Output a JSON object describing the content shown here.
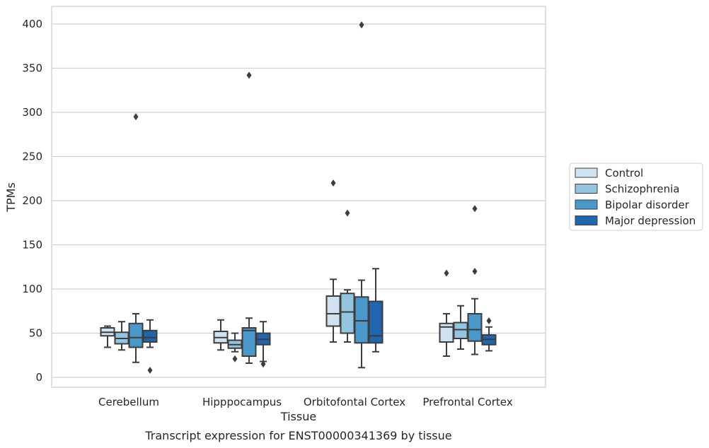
{
  "chart_data": {
    "type": "box",
    "caption": "Transcript expression for ENST00000341369 by tissue",
    "xlabel": "Tissue",
    "ylabel": "TPMs",
    "ylim": [
      -10,
      420
    ],
    "yticks": [
      0,
      50,
      100,
      150,
      200,
      250,
      300,
      350,
      400
    ],
    "grid": "horizontal",
    "legend_position": "right",
    "categories": [
      "Cerebellum",
      "Hipppocampus",
      "Orbitofontal Cortex",
      "Prefrontal Cortex"
    ],
    "series": [
      {
        "name": "Control",
        "color": "#d0e1f2",
        "boxes": [
          {
            "whislo": 34,
            "q1": 47,
            "med": 51,
            "q3": 56,
            "whishi": 58,
            "fliers": []
          },
          {
            "whislo": 31,
            "q1": 39,
            "med": 45,
            "q3": 52,
            "whishi": 65,
            "fliers": []
          },
          {
            "whislo": 40,
            "q1": 58,
            "med": 72,
            "q3": 92,
            "whishi": 111,
            "fliers": [
              220
            ]
          },
          {
            "whislo": 24,
            "q1": 40,
            "med": 57,
            "q3": 61,
            "whishi": 72,
            "fliers": [
              118
            ]
          }
        ]
      },
      {
        "name": "Schizophrenia",
        "color": "#94c4df",
        "boxes": [
          {
            "whislo": 31,
            "q1": 38,
            "med": 44,
            "q3": 51,
            "whishi": 63,
            "fliers": []
          },
          {
            "whislo": 29,
            "q1": 33,
            "med": 37,
            "q3": 42,
            "whishi": 50,
            "fliers": [
              21
            ]
          },
          {
            "whislo": 40,
            "q1": 50,
            "med": 74,
            "q3": 95,
            "whishi": 99,
            "fliers": [
              186
            ]
          },
          {
            "whislo": 32,
            "q1": 44,
            "med": 54,
            "q3": 62,
            "whishi": 81,
            "fliers": []
          }
        ]
      },
      {
        "name": "Bipolar disorder",
        "color": "#4a98c9",
        "boxes": [
          {
            "whislo": 17,
            "q1": 34,
            "med": 45,
            "q3": 61,
            "whishi": 72,
            "fliers": [
              295
            ]
          },
          {
            "whislo": 16,
            "q1": 24,
            "med": 53,
            "q3": 56,
            "whishi": 67,
            "fliers": [
              342
            ]
          },
          {
            "whislo": 11,
            "q1": 39,
            "med": 64,
            "q3": 91,
            "whishi": 110,
            "fliers": [
              399
            ]
          },
          {
            "whislo": 26,
            "q1": 41,
            "med": 54,
            "q3": 72,
            "whishi": 89,
            "fliers": [
              120,
              191
            ]
          }
        ]
      },
      {
        "name": "Major depression",
        "color": "#2166ac",
        "boxes": [
          {
            "whislo": 34,
            "q1": 40,
            "med": 45,
            "q3": 53,
            "whishi": 65,
            "fliers": [
              8
            ]
          },
          {
            "whislo": 18,
            "q1": 37,
            "med": 43,
            "q3": 50,
            "whishi": 63,
            "fliers": [
              15
            ]
          },
          {
            "whislo": 29,
            "q1": 39,
            "med": 47,
            "q3": 86,
            "whishi": 123,
            "fliers": []
          },
          {
            "whislo": 30,
            "q1": 37,
            "med": 43,
            "q3": 48,
            "whishi": 57,
            "fliers": [
              64
            ]
          }
        ]
      }
    ]
  }
}
